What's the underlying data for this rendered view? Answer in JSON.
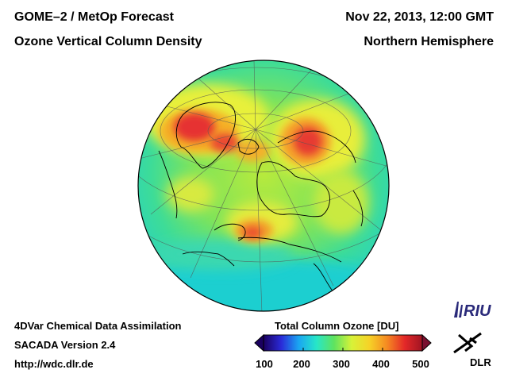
{
  "header": {
    "title_line1": "GOME–2 / MetOp Forecast",
    "title_line2": "Ozone Vertical Column Density",
    "date": "Nov 22, 2013, 12:00 GMT",
    "region": "Northern Hemisphere"
  },
  "footer": {
    "method": "4DVar Chemical Data Assimilation",
    "version": "SACADA Version 2.4",
    "url": "http://wdc.dlr.de"
  },
  "colorbar": {
    "title": "Total Column Ozone [DU]",
    "ticks": [
      "100",
      "200",
      "300",
      "400",
      "500"
    ],
    "min": 100,
    "max": 500,
    "colors": [
      "#1a0060",
      "#2a2ad8",
      "#1aa6f2",
      "#27e6c8",
      "#5fe35f",
      "#d8f238",
      "#f6d227",
      "#f58a22",
      "#e42828",
      "#a01423"
    ]
  },
  "logos": {
    "riu": "RIU",
    "dlr": "DLR"
  },
  "map": {
    "projection": "orthographic",
    "hemisphere": "northern",
    "background_color": "#2bd6b8"
  }
}
